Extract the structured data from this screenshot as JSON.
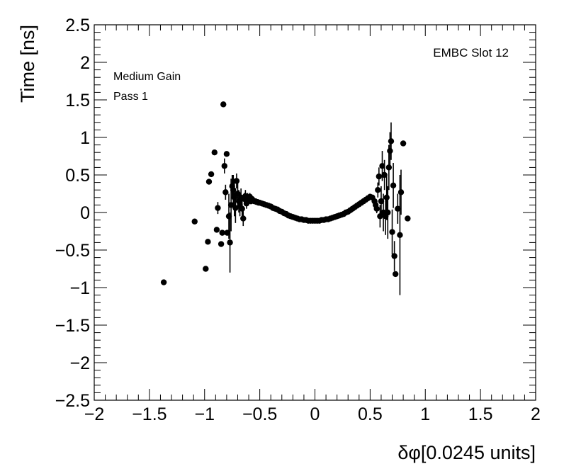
{
  "chart_data": {
    "type": "scatter",
    "title": "",
    "xlabel": "δφ[0.0245 units]",
    "ylabel": "Time [ns]",
    "xlim": [
      -2,
      2
    ],
    "ylim": [
      -2.5,
      2.5
    ],
    "grid": false,
    "x_ticks": [
      -2,
      -1.5,
      -1,
      -0.5,
      0,
      0.5,
      1,
      1.5,
      2
    ],
    "x_tick_labels": [
      "−2",
      "−1.5",
      "−1",
      "−0.5",
      "0",
      "0.5",
      "1",
      "1.5",
      "2"
    ],
    "y_ticks": [
      -2.5,
      -2,
      -1.5,
      -1,
      -0.5,
      0,
      0.5,
      1,
      1.5,
      2,
      2.5
    ],
    "y_tick_labels": [
      "−2.5",
      "−2",
      "−1.5",
      "−1",
      "−0.5",
      "0",
      "0.5",
      "1",
      "1.5",
      "2",
      "2.5"
    ],
    "annotations": {
      "slot": "EMBC Slot 12",
      "gain": "Medium Gain",
      "pass": "Pass 1"
    },
    "points": [
      {
        "x": -1.37,
        "y": -0.93,
        "err": 0
      },
      {
        "x": -1.09,
        "y": -0.12,
        "err": 0
      },
      {
        "x": -0.99,
        "y": -0.75,
        "err": 0
      },
      {
        "x": -0.97,
        "y": -0.39,
        "err": 0
      },
      {
        "x": -0.96,
        "y": 0.41,
        "err": 0
      },
      {
        "x": -0.94,
        "y": 0.51,
        "err": 0
      },
      {
        "x": -0.91,
        "y": 0.8,
        "err": 0
      },
      {
        "x": -0.89,
        "y": -0.23,
        "err": 0
      },
      {
        "x": -0.88,
        "y": 0.06,
        "err": 0.08
      },
      {
        "x": -0.85,
        "y": -0.42,
        "err": 0
      },
      {
        "x": -0.84,
        "y": -0.27,
        "err": 0
      },
      {
        "x": -0.83,
        "y": 1.44,
        "err": 0
      },
      {
        "x": -0.82,
        "y": 0.62,
        "err": 0.1
      },
      {
        "x": -0.81,
        "y": 0.27,
        "err": 0.1
      },
      {
        "x": -0.8,
        "y": 0.78,
        "err": 0
      },
      {
        "x": -0.795,
        "y": -0.27,
        "err": 0
      },
      {
        "x": -0.78,
        "y": -0.05,
        "err": 0.3
      },
      {
        "x": -0.77,
        "y": -0.4,
        "err": 0.4
      },
      {
        "x": -0.76,
        "y": 0.1,
        "err": 0.35
      },
      {
        "x": -0.75,
        "y": 0.35,
        "err": 0.15
      },
      {
        "x": -0.74,
        "y": 0.3,
        "err": 0.2
      },
      {
        "x": -0.73,
        "y": 0.2,
        "err": 0.25
      },
      {
        "x": -0.72,
        "y": 0.06,
        "err": 0.2
      },
      {
        "x": -0.71,
        "y": 0.42,
        "err": 0.1
      },
      {
        "x": -0.7,
        "y": 0.25,
        "err": 0.15
      },
      {
        "x": -0.69,
        "y": 0.15,
        "err": 0.15
      },
      {
        "x": -0.68,
        "y": 0.1,
        "err": 0.15
      },
      {
        "x": -0.67,
        "y": 0.2,
        "err": 0.12
      },
      {
        "x": -0.66,
        "y": 0.05,
        "err": 0.12
      },
      {
        "x": -0.65,
        "y": -0.08,
        "err": 0.1
      },
      {
        "x": -0.64,
        "y": 0.18,
        "err": 0.08
      },
      {
        "x": -0.63,
        "y": 0.22,
        "err": 0.08
      },
      {
        "x": -0.62,
        "y": 0.12,
        "err": 0.07
      },
      {
        "x": -0.61,
        "y": 0.2,
        "err": 0.06
      },
      {
        "x": -0.6,
        "y": 0.16,
        "err": 0.05
      },
      {
        "x": -0.59,
        "y": 0.21,
        "err": 0.05
      },
      {
        "x": -0.58,
        "y": 0.15,
        "err": 0.04
      },
      {
        "x": -0.57,
        "y": 0.18,
        "err": 0.04
      },
      {
        "x": -0.56,
        "y": 0.16,
        "err": 0.03
      },
      {
        "x": -0.55,
        "y": 0.15,
        "err": 0.03
      },
      {
        "x": -0.54,
        "y": 0.15,
        "err": 0.03
      },
      {
        "x": -0.53,
        "y": 0.14,
        "err": 0.02
      },
      {
        "x": -0.52,
        "y": 0.14,
        "err": 0.02
      },
      {
        "x": -0.51,
        "y": 0.13,
        "err": 0.02
      },
      {
        "x": -0.5,
        "y": 0.13,
        "err": 0.02
      },
      {
        "x": -0.48,
        "y": 0.12,
        "err": 0.02
      },
      {
        "x": -0.46,
        "y": 0.11,
        "err": 0.01
      },
      {
        "x": -0.44,
        "y": 0.1,
        "err": 0.01
      },
      {
        "x": -0.42,
        "y": 0.09,
        "err": 0.01
      },
      {
        "x": -0.4,
        "y": 0.08,
        "err": 0.01
      },
      {
        "x": -0.38,
        "y": 0.06,
        "err": 0.01
      },
      {
        "x": -0.36,
        "y": 0.05,
        "err": 0.01
      },
      {
        "x": -0.34,
        "y": 0.04,
        "err": 0.01
      },
      {
        "x": -0.32,
        "y": 0.02,
        "err": 0.01
      },
      {
        "x": -0.3,
        "y": 0.01,
        "err": 0.01
      },
      {
        "x": -0.28,
        "y": -0.01,
        "err": 0.01
      },
      {
        "x": -0.26,
        "y": -0.02,
        "err": 0.01
      },
      {
        "x": -0.24,
        "y": -0.04,
        "err": 0.01
      },
      {
        "x": -0.22,
        "y": -0.05,
        "err": 0.01
      },
      {
        "x": -0.2,
        "y": -0.06,
        "err": 0.01
      },
      {
        "x": -0.18,
        "y": -0.07,
        "err": 0.01
      },
      {
        "x": -0.16,
        "y": -0.08,
        "err": 0.01
      },
      {
        "x": -0.14,
        "y": -0.09,
        "err": 0.01
      },
      {
        "x": -0.12,
        "y": -0.09,
        "err": 0.01
      },
      {
        "x": -0.1,
        "y": -0.1,
        "err": 0.01
      },
      {
        "x": -0.08,
        "y": -0.1,
        "err": 0.01
      },
      {
        "x": -0.06,
        "y": -0.11,
        "err": 0.01
      },
      {
        "x": -0.04,
        "y": -0.11,
        "err": 0.01
      },
      {
        "x": -0.02,
        "y": -0.11,
        "err": 0.01
      },
      {
        "x": 0.0,
        "y": -0.11,
        "err": 0.01
      },
      {
        "x": 0.02,
        "y": -0.11,
        "err": 0.01
      },
      {
        "x": 0.04,
        "y": -0.11,
        "err": 0.01
      },
      {
        "x": 0.06,
        "y": -0.1,
        "err": 0.01
      },
      {
        "x": 0.08,
        "y": -0.1,
        "err": 0.01
      },
      {
        "x": 0.1,
        "y": -0.09,
        "err": 0.01
      },
      {
        "x": 0.12,
        "y": -0.09,
        "err": 0.01
      },
      {
        "x": 0.14,
        "y": -0.08,
        "err": 0.01
      },
      {
        "x": 0.16,
        "y": -0.07,
        "err": 0.01
      },
      {
        "x": 0.18,
        "y": -0.06,
        "err": 0.01
      },
      {
        "x": 0.2,
        "y": -0.05,
        "err": 0.01
      },
      {
        "x": 0.22,
        "y": -0.04,
        "err": 0.01
      },
      {
        "x": 0.24,
        "y": -0.03,
        "err": 0.01
      },
      {
        "x": 0.26,
        "y": -0.02,
        "err": 0.01
      },
      {
        "x": 0.28,
        "y": 0.0,
        "err": 0.01
      },
      {
        "x": 0.3,
        "y": 0.01,
        "err": 0.01
      },
      {
        "x": 0.32,
        "y": 0.03,
        "err": 0.01
      },
      {
        "x": 0.34,
        "y": 0.05,
        "err": 0.01
      },
      {
        "x": 0.36,
        "y": 0.07,
        "err": 0.01
      },
      {
        "x": 0.38,
        "y": 0.09,
        "err": 0.01
      },
      {
        "x": 0.4,
        "y": 0.11,
        "err": 0.01
      },
      {
        "x": 0.42,
        "y": 0.13,
        "err": 0.01
      },
      {
        "x": 0.44,
        "y": 0.15,
        "err": 0.02
      },
      {
        "x": 0.46,
        "y": 0.17,
        "err": 0.02
      },
      {
        "x": 0.48,
        "y": 0.19,
        "err": 0.02
      },
      {
        "x": 0.5,
        "y": 0.21,
        "err": 0.02
      },
      {
        "x": 0.52,
        "y": 0.2,
        "err": 0.03
      },
      {
        "x": 0.54,
        "y": 0.15,
        "err": 0.04
      },
      {
        "x": 0.55,
        "y": 0.1,
        "err": 0.05
      },
      {
        "x": 0.56,
        "y": 0.05,
        "err": 0.06
      },
      {
        "x": 0.57,
        "y": 0.3,
        "err": 0.1
      },
      {
        "x": 0.58,
        "y": 0.48,
        "err": 0.12
      },
      {
        "x": 0.59,
        "y": -0.05,
        "err": 0.15
      },
      {
        "x": 0.6,
        "y": 0.15,
        "err": 0.2
      },
      {
        "x": 0.61,
        "y": 0.62,
        "err": 0.2
      },
      {
        "x": 0.62,
        "y": 0.0,
        "err": 0.25
      },
      {
        "x": 0.63,
        "y": 0.5,
        "err": 0.2
      },
      {
        "x": 0.64,
        "y": -0.05,
        "err": 0.25
      },
      {
        "x": 0.65,
        "y": 0.2,
        "err": 0.3
      },
      {
        "x": 0.66,
        "y": 0.0,
        "err": 0.35
      },
      {
        "x": 0.67,
        "y": 0.6,
        "err": 0.3
      },
      {
        "x": 0.68,
        "y": 0.82,
        "err": 0.25
      },
      {
        "x": 0.69,
        "y": 0.95,
        "err": 0.25
      },
      {
        "x": 0.7,
        "y": -0.26,
        "err": 0.3
      },
      {
        "x": 0.71,
        "y": 0.36,
        "err": 0.3
      },
      {
        "x": 0.72,
        "y": -0.58,
        "err": 0.2
      },
      {
        "x": 0.73,
        "y": -0.82,
        "err": 0
      },
      {
        "x": 0.75,
        "y": 0.05,
        "err": 0.2
      },
      {
        "x": 0.77,
        "y": -0.3,
        "err": 0.8
      },
      {
        "x": 0.78,
        "y": 0.27,
        "err": 0.3
      },
      {
        "x": 0.8,
        "y": 0.92,
        "err": 0
      },
      {
        "x": 0.84,
        "y": -0.08,
        "err": 0
      }
    ]
  }
}
